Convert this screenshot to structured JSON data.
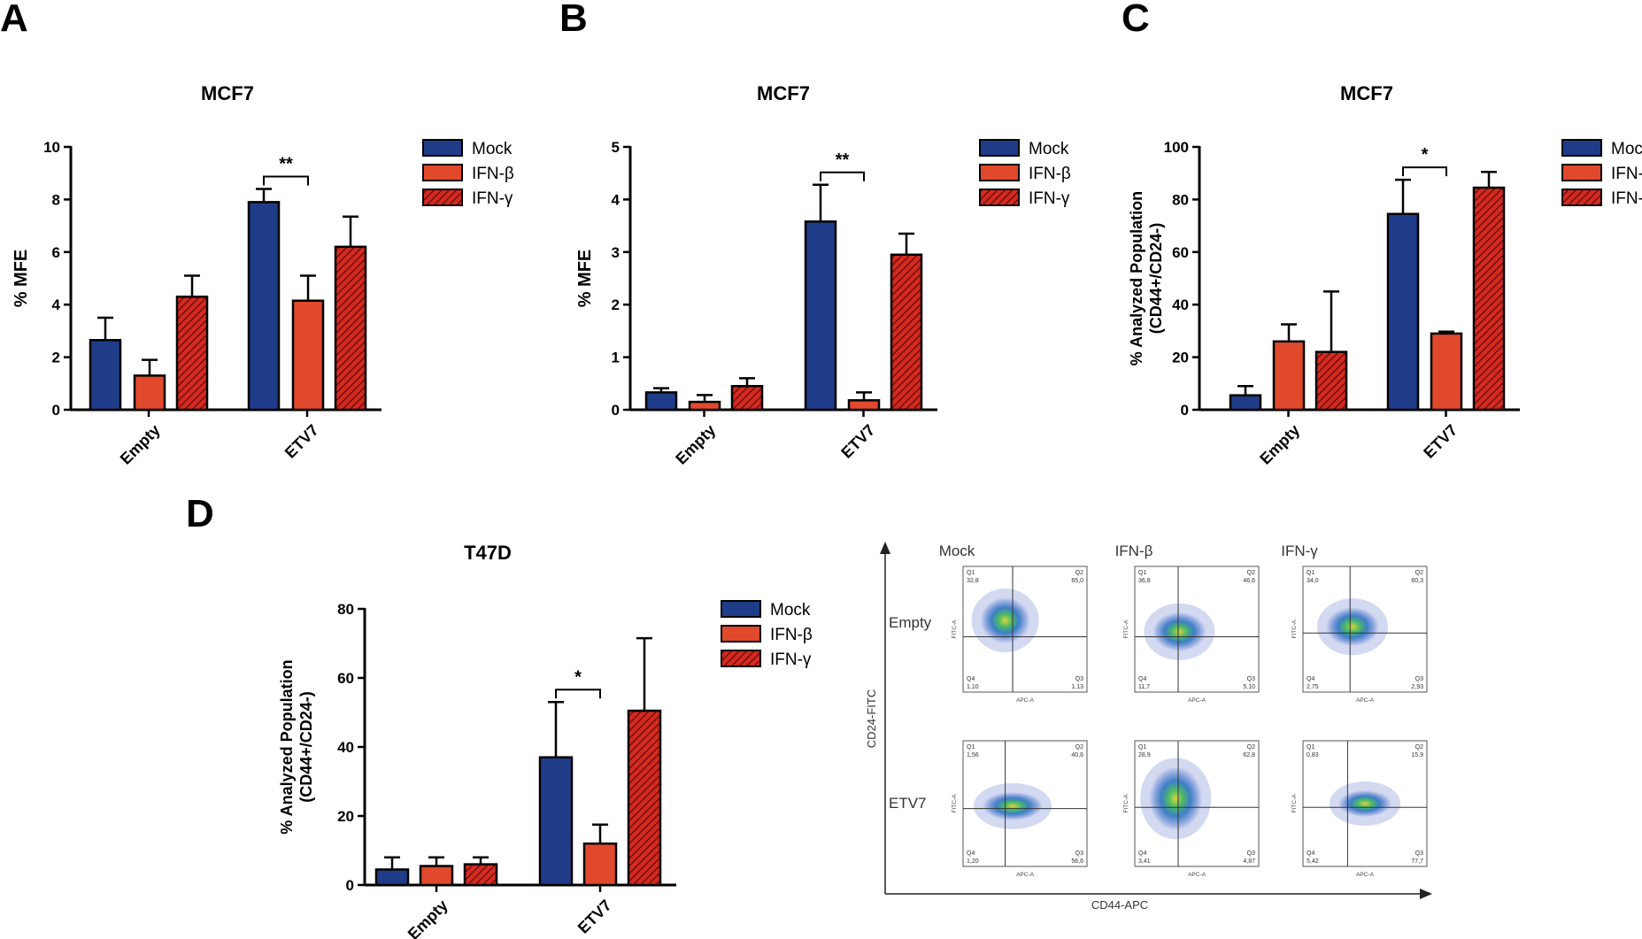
{
  "panel_letters": [
    "A",
    "B",
    "C",
    "D"
  ],
  "legend": [
    {
      "name": "Mock",
      "color": "#1f3c88",
      "pattern": "solid"
    },
    {
      "name": "IFN-β",
      "color": "#e0492b",
      "pattern": "solid"
    },
    {
      "name": "IFN-γ",
      "color": "#c01a17",
      "pattern": "hatched"
    }
  ],
  "chart_data": [
    {
      "id": "A",
      "type": "bar",
      "title": "MCF7",
      "xlabel": "",
      "ylabel": [
        "% MFE"
      ],
      "ylim": [
        0,
        10
      ],
      "yticks": [
        0,
        2,
        4,
        6,
        8,
        10
      ],
      "categories": [
        "Empty",
        "ETV7"
      ],
      "series": [
        {
          "name": "Mock",
          "values": [
            2.65,
            7.9
          ],
          "errors": [
            0.85,
            0.5
          ]
        },
        {
          "name": "IFN-β",
          "values": [
            1.3,
            4.15
          ],
          "errors": [
            0.6,
            0.95
          ]
        },
        {
          "name": "IFN-γ",
          "values": [
            4.3,
            6.2
          ],
          "errors": [
            0.8,
            1.15
          ]
        }
      ],
      "significance": [
        {
          "category": "ETV7",
          "between": [
            "Mock",
            "IFN-β"
          ],
          "label": "**"
        }
      ]
    },
    {
      "id": "B",
      "type": "bar",
      "title": "MCF7",
      "xlabel": "",
      "ylabel": [
        "% MFE"
      ],
      "ylim": [
        0,
        5
      ],
      "yticks": [
        0,
        1,
        2,
        3,
        4,
        5
      ],
      "categories": [
        "Empty",
        "ETV7"
      ],
      "series": [
        {
          "name": "Mock",
          "values": [
            0.33,
            3.58
          ],
          "errors": [
            0.08,
            0.7
          ]
        },
        {
          "name": "IFN-β",
          "values": [
            0.15,
            0.18
          ],
          "errors": [
            0.13,
            0.15
          ]
        },
        {
          "name": "IFN-γ",
          "values": [
            0.45,
            2.95
          ],
          "errors": [
            0.15,
            0.4
          ]
        }
      ],
      "significance": [
        {
          "category": "ETV7",
          "between": [
            "Mock",
            "IFN-β"
          ],
          "label": "**"
        }
      ]
    },
    {
      "id": "C",
      "type": "bar",
      "title": "MCF7",
      "xlabel": "",
      "ylabel": [
        "% Analyzed Population",
        "(CD44+/CD24-)"
      ],
      "ylim": [
        0,
        100
      ],
      "yticks": [
        0,
        20,
        40,
        60,
        80,
        100
      ],
      "categories": [
        "Empty",
        "ETV7"
      ],
      "series": [
        {
          "name": "Mock",
          "values": [
            5.5,
            74.5
          ],
          "errors": [
            3.5,
            13
          ]
        },
        {
          "name": "IFN-β",
          "values": [
            26,
            29
          ],
          "errors": [
            6.5,
            0.7
          ]
        },
        {
          "name": "IFN-γ",
          "values": [
            22,
            84.5
          ],
          "errors": [
            23,
            6
          ]
        }
      ],
      "significance": [
        {
          "category": "ETV7",
          "between": [
            "Mock",
            "IFN-β"
          ],
          "label": "*"
        }
      ]
    },
    {
      "id": "D",
      "type": "bar",
      "title": "T47D",
      "xlabel": "",
      "ylabel": [
        "% Analyzed Population",
        "(CD44+/CD24-)"
      ],
      "ylim": [
        0,
        80
      ],
      "yticks": [
        0,
        20,
        40,
        60,
        80
      ],
      "categories": [
        "Empty",
        "ETV7"
      ],
      "series": [
        {
          "name": "Mock",
          "values": [
            4.5,
            37
          ],
          "errors": [
            3.5,
            16
          ]
        },
        {
          "name": "IFN-β",
          "values": [
            5.5,
            12
          ],
          "errors": [
            2.5,
            5.5
          ]
        },
        {
          "name": "IFN-γ",
          "values": [
            6,
            50.5
          ],
          "errors": [
            2,
            21
          ]
        }
      ],
      "significance": [
        {
          "category": "ETV7",
          "between": [
            "Mock",
            "IFN-β"
          ],
          "label": "*"
        }
      ]
    }
  ],
  "flow": {
    "columns": [
      "Mock",
      "IFN-β",
      "IFN-γ"
    ],
    "rows": [
      "Empty",
      "ETV7"
    ],
    "x_axis_label": "CD44-APC",
    "y_axis_label": "CD24-FITC",
    "plot_x_label": "APC-A",
    "plot_y_label": "FITC-A",
    "quadrant_names": [
      "Q1",
      "Q2",
      "Q3",
      "Q4"
    ],
    "plots": [
      {
        "q1": "32,8",
        "q2": "65,0",
        "q3": "1,13",
        "q4": "1,10"
      },
      {
        "q1": "36,8",
        "q2": "46,6",
        "q3": "5,10",
        "q4": "11,7"
      },
      {
        "q1": "34,0",
        "q2": "60,3",
        "q3": "2,93",
        "q4": "2,75"
      },
      {
        "q1": "1,56",
        "q2": "40,6",
        "q3": "56,6",
        "q4": "1,20"
      },
      {
        "q1": "28,9",
        "q2": "62,8",
        "q3": "4,87",
        "q4": "3,41"
      },
      {
        "q1": "0,83",
        "q2": "15,9",
        "q3": "77,7",
        "q4": "5,42"
      }
    ]
  }
}
